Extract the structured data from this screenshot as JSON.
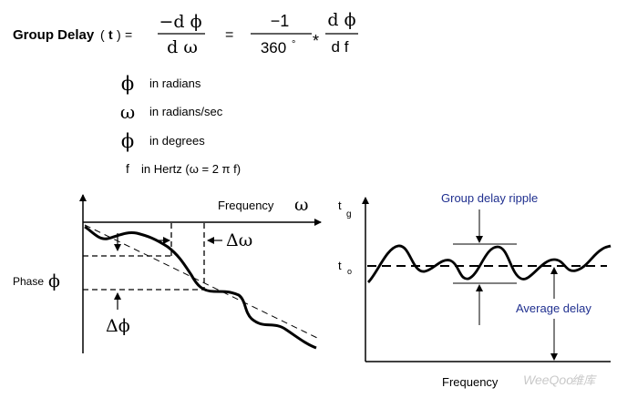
{
  "equation": {
    "label": "Group Delay",
    "arg_open": "(",
    "tau": "t",
    "arg_close": ")",
    "equals1": "=",
    "frac1_num": "−d ϕ",
    "frac1_den": "d ω",
    "equals2": "=",
    "frac2_num": "−1",
    "frac2_den": "360",
    "degree": "°",
    "times": "*",
    "frac3_num": "d ϕ",
    "frac3_den": "d f"
  },
  "legend": [
    {
      "symbol": "ϕ",
      "text": "in radians"
    },
    {
      "symbol": "ω",
      "text": "in radians/sec"
    },
    {
      "symbol": "ϕ",
      "text": "in degrees"
    },
    {
      "symbol": "f",
      "text": "in Hertz  (ω = 2  π f)"
    }
  ],
  "phase_plot": {
    "y_label": "Phase",
    "y_symbol": "ϕ",
    "x_label": "Frequency",
    "x_symbol": "ω",
    "delta_omega": "Δω",
    "delta_phi": "Δϕ"
  },
  "delay_plot": {
    "y_label_main": "t",
    "y_label_sub": "g",
    "t0_main": "t",
    "t0_sub": "o",
    "ripple_label": "Group delay ripple",
    "average_label": "Average delay",
    "x_label": "Frequency"
  },
  "watermark": {
    "text": "WeeQoo",
    "suffix": "维库"
  },
  "colors": {
    "ink": "#000000",
    "annotation_blue": "#1f2f8f",
    "watermark": "#c9c9c9"
  }
}
